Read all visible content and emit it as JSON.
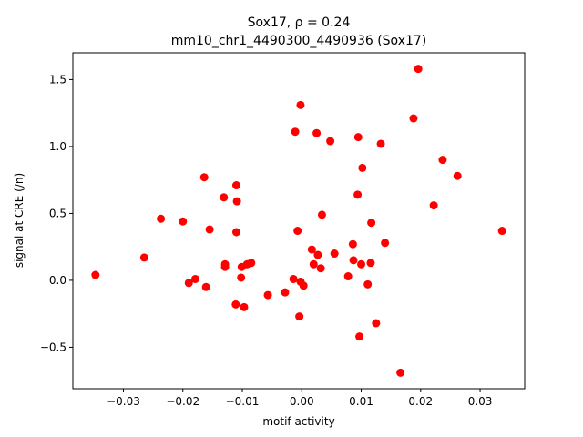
{
  "chart_data": {
    "type": "scatter",
    "title_line1": "Sox17, ρ = 0.24",
    "title_line2": "mm10_chr1_4490300_4490936 (Sox17)",
    "xlabel": "motif activity",
    "ylabel": "signal at CRE (/n)",
    "xlim": [
      -0.0385,
      0.0375
    ],
    "ylim": [
      -0.81,
      1.7
    ],
    "x_ticks": [
      -0.03,
      -0.02,
      -0.01,
      0.0,
      0.01,
      0.02,
      0.03
    ],
    "x_tick_labels": [
      "−0.03",
      "−0.02",
      "−0.01",
      "0.00",
      "0.01",
      "0.02",
      "0.03"
    ],
    "y_ticks": [
      -0.5,
      0.0,
      0.5,
      1.0,
      1.5
    ],
    "y_tick_labels": [
      "−0.5",
      "0.0",
      "0.5",
      "1.0",
      "1.5"
    ],
    "grid": false,
    "marker_color": "#ff0000",
    "points": [
      {
        "x": -0.0347,
        "y": 0.04
      },
      {
        "x": -0.0265,
        "y": 0.17
      },
      {
        "x": -0.0237,
        "y": 0.46
      },
      {
        "x": -0.02,
        "y": 0.44
      },
      {
        "x": -0.019,
        "y": -0.02
      },
      {
        "x": -0.0179,
        "y": 0.01
      },
      {
        "x": -0.0164,
        "y": 0.77
      },
      {
        "x": -0.0161,
        "y": -0.05
      },
      {
        "x": -0.0155,
        "y": 0.38
      },
      {
        "x": -0.0131,
        "y": 0.62
      },
      {
        "x": -0.0129,
        "y": 0.12
      },
      {
        "x": -0.0129,
        "y": 0.1
      },
      {
        "x": -0.011,
        "y": 0.71
      },
      {
        "x": -0.0109,
        "y": 0.59
      },
      {
        "x": -0.011,
        "y": 0.36
      },
      {
        "x": -0.0111,
        "y": -0.18
      },
      {
        "x": -0.0101,
        "y": 0.1
      },
      {
        "x": -0.0102,
        "y": 0.02
      },
      {
        "x": -0.0097,
        "y": -0.2
      },
      {
        "x": -0.0092,
        "y": 0.12
      },
      {
        "x": -0.0085,
        "y": 0.13
      },
      {
        "x": -0.0057,
        "y": -0.11
      },
      {
        "x": -0.0028,
        "y": -0.09
      },
      {
        "x": -0.0014,
        "y": 0.01
      },
      {
        "x": -0.0011,
        "y": 1.11
      },
      {
        "x": -0.0007,
        "y": 0.37
      },
      {
        "x": -0.0004,
        "y": -0.27
      },
      {
        "x": -0.0002,
        "y": 1.31
      },
      {
        "x": -0.0002,
        "y": -0.01
      },
      {
        "x": 0.0003,
        "y": -0.04
      },
      {
        "x": 0.0017,
        "y": 0.23
      },
      {
        "x": 0.002,
        "y": 0.12
      },
      {
        "x": 0.0025,
        "y": 1.1
      },
      {
        "x": 0.0027,
        "y": 0.19
      },
      {
        "x": 0.0032,
        "y": 0.09
      },
      {
        "x": 0.0034,
        "y": 0.49
      },
      {
        "x": 0.0048,
        "y": 1.04
      },
      {
        "x": 0.0055,
        "y": 0.2
      },
      {
        "x": 0.0078,
        "y": 0.03
      },
      {
        "x": 0.0086,
        "y": 0.27
      },
      {
        "x": 0.0087,
        "y": 0.15
      },
      {
        "x": 0.0094,
        "y": 0.64
      },
      {
        "x": 0.0095,
        "y": 1.07
      },
      {
        "x": 0.0097,
        "y": -0.42
      },
      {
        "x": 0.01,
        "y": 0.12
      },
      {
        "x": 0.0102,
        "y": 0.84
      },
      {
        "x": 0.0111,
        "y": -0.03
      },
      {
        "x": 0.0116,
        "y": 0.13
      },
      {
        "x": 0.0117,
        "y": 0.43
      },
      {
        "x": 0.0125,
        "y": -0.32
      },
      {
        "x": 0.0133,
        "y": 1.02
      },
      {
        "x": 0.014,
        "y": 0.28
      },
      {
        "x": 0.0166,
        "y": -0.69
      },
      {
        "x": 0.0188,
        "y": 1.21
      },
      {
        "x": 0.0196,
        "y": 1.58
      },
      {
        "x": 0.0222,
        "y": 0.56
      },
      {
        "x": 0.0237,
        "y": 0.9
      },
      {
        "x": 0.0262,
        "y": 0.78
      },
      {
        "x": 0.0337,
        "y": 0.37
      }
    ]
  }
}
